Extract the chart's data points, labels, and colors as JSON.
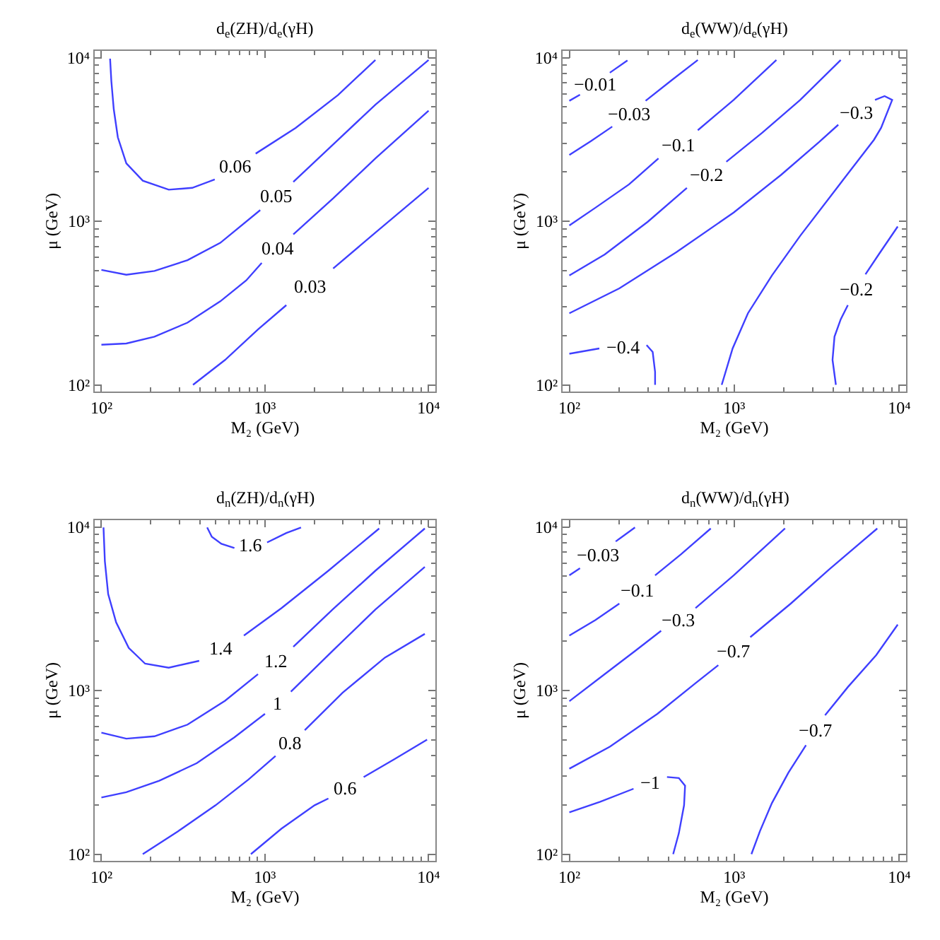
{
  "chart_data": [
    {
      "type": "line",
      "title": "d$_{e}$(ZH)/d$_{e}$(γH)",
      "xlabel": "M₂ (GeV)",
      "ylabel": "μ (GeV)",
      "log": "xy",
      "legend": false,
      "xlim": [
        91,
        11000
      ],
      "ylim": [
        91,
        11000
      ],
      "xticks": [
        {
          "value": 100,
          "label": "10²"
        },
        {
          "value": 200,
          "label": null
        },
        {
          "value": 300,
          "label": null
        },
        {
          "value": 400,
          "label": null
        },
        {
          "value": 500,
          "label": null
        },
        {
          "value": 600,
          "label": null
        },
        {
          "value": 700,
          "label": null
        },
        {
          "value": 800,
          "label": null
        },
        {
          "value": 900,
          "label": null
        },
        {
          "value": 1000,
          "label": "10³"
        },
        {
          "value": 2000,
          "label": null
        },
        {
          "value": 3000,
          "label": null
        },
        {
          "value": 4000,
          "label": null
        },
        {
          "value": 5000,
          "label": null
        },
        {
          "value": 6000,
          "label": null
        },
        {
          "value": 7000,
          "label": null
        },
        {
          "value": 8000,
          "label": null
        },
        {
          "value": 9000,
          "label": null
        },
        {
          "value": 10000,
          "label": "10⁴"
        }
      ],
      "yticks": [
        {
          "value": 100,
          "label": "10²"
        },
        {
          "value": 200,
          "label": null
        },
        {
          "value": 300,
          "label": null
        },
        {
          "value": 400,
          "label": null
        },
        {
          "value": 500,
          "label": null
        },
        {
          "value": 600,
          "label": null
        },
        {
          "value": 700,
          "label": null
        },
        {
          "value": 800,
          "label": null
        },
        {
          "value": 900,
          "label": null
        },
        {
          "value": 1000,
          "label": "10³"
        },
        {
          "value": 2000,
          "label": null
        },
        {
          "value": 3000,
          "label": null
        },
        {
          "value": 4000,
          "label": null
        },
        {
          "value": 5000,
          "label": null
        },
        {
          "value": 6000,
          "label": null
        },
        {
          "value": 7000,
          "label": null
        },
        {
          "value": 8000,
          "label": null
        },
        {
          "value": 9000,
          "label": null
        },
        {
          "value": 10000,
          "label": "10⁴"
        }
      ],
      "series": [
        {
          "name": "0.06",
          "color": "#3f3fff",
          "x": [
            113,
            115,
            119,
            126,
            142,
            179,
            258,
            359,
            493,
            null,
            877,
            1540,
            2790,
            4730
          ],
          "values": [
            9860,
            7190,
            4840,
            3260,
            2260,
            1770,
            1560,
            1600,
            1800,
            null,
            2590,
            3720,
            5900,
            9680
          ]
        },
        {
          "name": "0.05",
          "color": "#3f3fff",
          "x": [
            100,
            142,
            211,
            336,
            533,
            935,
            null,
            1490,
            2610,
            4730,
            10000
          ],
          "values": [
            504,
            471,
            497,
            578,
            738,
            1170,
            null,
            1740,
            2950,
            5160,
            9680
          ]
        },
        {
          "name": "0.04",
          "color": "#3f3fff",
          "x": [
            100,
            142,
            211,
            336,
            533,
            768,
            955,
            null,
            1490,
            2610,
            4730,
            10000
          ],
          "values": [
            176,
            179,
            197,
            240,
            324,
            435,
            556,
            null,
            832,
            1380,
            2420,
            4740
          ]
        },
        {
          "name": "0.03",
          "color": "#3f3fff",
          "x": [
            363,
            570,
            906,
            1350,
            null,
            2610,
            4730,
            10000
          ],
          "values": [
            100,
            142,
            218,
            307,
            null,
            514,
            853,
            1600
          ]
        }
      ]
    },
    {
      "type": "line",
      "title": "d$_{e}$(WW)/d$_{e}$(γH)",
      "xlabel": "M₂ (GeV)",
      "ylabel": "μ (GeV)",
      "log": "xy",
      "legend": false,
      "xlim": [
        91,
        11000
      ],
      "ylim": [
        91,
        11000
      ],
      "xticks": [
        {
          "value": 100,
          "label": "10²"
        },
        {
          "value": 200,
          "label": null
        },
        {
          "value": 300,
          "label": null
        },
        {
          "value": 400,
          "label": null
        },
        {
          "value": 500,
          "label": null
        },
        {
          "value": 600,
          "label": null
        },
        {
          "value": 700,
          "label": null
        },
        {
          "value": 800,
          "label": null
        },
        {
          "value": 900,
          "label": null
        },
        {
          "value": 1000,
          "label": "10³"
        },
        {
          "value": 2000,
          "label": null
        },
        {
          "value": 3000,
          "label": null
        },
        {
          "value": 4000,
          "label": null
        },
        {
          "value": 5000,
          "label": null
        },
        {
          "value": 6000,
          "label": null
        },
        {
          "value": 7000,
          "label": null
        },
        {
          "value": 8000,
          "label": null
        },
        {
          "value": 9000,
          "label": null
        },
        {
          "value": 10000,
          "label": "10⁴"
        }
      ],
      "yticks": [
        {
          "value": 100,
          "label": "10²"
        },
        {
          "value": 200,
          "label": null
        },
        {
          "value": 300,
          "label": null
        },
        {
          "value": 400,
          "label": null
        },
        {
          "value": 500,
          "label": null
        },
        {
          "value": 600,
          "label": null
        },
        {
          "value": 700,
          "label": null
        },
        {
          "value": 800,
          "label": null
        },
        {
          "value": 900,
          "label": null
        },
        {
          "value": 1000,
          "label": "10³"
        },
        {
          "value": 2000,
          "label": null
        },
        {
          "value": 3000,
          "label": null
        },
        {
          "value": 4000,
          "label": null
        },
        {
          "value": 5000,
          "label": null
        },
        {
          "value": 6000,
          "label": null
        },
        {
          "value": 7000,
          "label": null
        },
        {
          "value": 8000,
          "label": null
        },
        {
          "value": 9000,
          "label": null
        },
        {
          "value": 10000,
          "label": "10⁴"
        }
      ],
      "series": [
        {
          "name": "−0.01",
          "color": "#3f3fff",
          "x": [
            100,
            116,
            null,
            176,
            225
          ],
          "values": [
            5450,
            5940,
            null,
            8090,
            9610
          ]
        },
        {
          "name": "−0.03",
          "color": "#3f3fff",
          "x": [
            100,
            135,
            182,
            null,
            290,
            417,
            601
          ],
          "values": [
            2540,
            3090,
            3790,
            null,
            5450,
            7280,
            9680
          ]
        },
        {
          "name": "−0.1",
          "color": "#3f3fff",
          "x": [
            100,
            144,
            230,
            347,
            null,
            601,
            991,
            1800
          ],
          "values": [
            942,
            1210,
            1680,
            2420,
            null,
            3600,
            5520,
            9680
          ]
        },
        {
          "name": "−0.2",
          "color": "#3f3fff",
          "x": [
            100,
            164,
            299,
            516,
            null,
            895,
            1480,
            2510,
            4420
          ],
          "values": [
            466,
            627,
            993,
            1600,
            null,
            2310,
            3480,
            5520,
            9680
          ]
        },
        {
          "name": "−0.3",
          "color": "#3f3fff",
          "x": [
            100,
            201,
            446,
            991,
            1920,
            3270,
            4270,
            null,
            7130,
            8150,
            9060,
            7760,
            7030,
            4350,
            2510,
            1690,
            1210,
            977,
            839
          ],
          "values": [
            274,
            389,
            647,
            1130,
            1920,
            3050,
            3890,
            null,
            5520,
            5820,
            5520,
            3720,
            3150,
            1680,
            815,
            466,
            274,
            167,
            100
          ]
        },
        {
          "name": "−0.4",
          "color": "#3f3fff",
          "x": [
            100,
            152,
            null,
            294,
            320,
            331,
            331
          ],
          "values": [
            155,
            167,
            null,
            175,
            159,
            120,
            100
          ]
        },
        {
          "name": "−0.2",
          "color": "#3f3fff",
          "x": [
            4130,
            3940,
            4050,
            4420,
            4880,
            null,
            6240,
            7510,
            9790
          ],
          "values": [
            100,
            142,
            197,
            252,
            307,
            null,
            474,
            627,
            929
          ]
        }
      ]
    },
    {
      "type": "line",
      "title": "d$_{n}$(ZH)/d$_{n}$(γH)",
      "xlabel": "M₂ (GeV)",
      "ylabel": "μ (GeV)",
      "log": "xy",
      "legend": false,
      "xlim": [
        91,
        11000
      ],
      "ylim": [
        91,
        11000
      ],
      "xticks": [
        {
          "value": 100,
          "label": "10²"
        },
        {
          "value": 200,
          "label": null
        },
        {
          "value": 300,
          "label": null
        },
        {
          "value": 400,
          "label": null
        },
        {
          "value": 500,
          "label": null
        },
        {
          "value": 600,
          "label": null
        },
        {
          "value": 700,
          "label": null
        },
        {
          "value": 800,
          "label": null
        },
        {
          "value": 900,
          "label": null
        },
        {
          "value": 1000,
          "label": "10³"
        },
        {
          "value": 2000,
          "label": null
        },
        {
          "value": 3000,
          "label": null
        },
        {
          "value": 4000,
          "label": null
        },
        {
          "value": 5000,
          "label": null
        },
        {
          "value": 6000,
          "label": null
        },
        {
          "value": 7000,
          "label": null
        },
        {
          "value": 8000,
          "label": null
        },
        {
          "value": 9000,
          "label": null
        },
        {
          "value": 10000,
          "label": "10⁴"
        }
      ],
      "yticks": [
        {
          "value": 100,
          "label": "10²"
        },
        {
          "value": 200,
          "label": null
        },
        {
          "value": 300,
          "label": null
        },
        {
          "value": 400,
          "label": null
        },
        {
          "value": 500,
          "label": null
        },
        {
          "value": 600,
          "label": null
        },
        {
          "value": 700,
          "label": null
        },
        {
          "value": 800,
          "label": null
        },
        {
          "value": 900,
          "label": null
        },
        {
          "value": 1000,
          "label": "10³"
        },
        {
          "value": 2000,
          "label": null
        },
        {
          "value": 3000,
          "label": null
        },
        {
          "value": 4000,
          "label": null
        },
        {
          "value": 5000,
          "label": null
        },
        {
          "value": 6000,
          "label": null
        },
        {
          "value": 7000,
          "label": null
        },
        {
          "value": 8000,
          "label": null
        },
        {
          "value": 9000,
          "label": null
        },
        {
          "value": 10000,
          "label": "10⁴"
        }
      ],
      "series": [
        {
          "name": "1.6",
          "color": "#3f3fff",
          "x": [
            443,
            473,
            541,
            650,
            null,
            1030,
            1350,
            1660
          ],
          "values": [
            9930,
            8710,
            7890,
            7430,
            null,
            8040,
            9180,
            9930
          ]
        },
        {
          "name": "1.4",
          "color": "#3f3fff",
          "x": [
            103,
            105,
            110,
            123,
            147,
            185,
            258,
            396,
            null,
            743,
            1260,
            2440,
            4990
          ],
          "values": [
            9930,
            6170,
            3890,
            2610,
            1820,
            1460,
            1380,
            1520,
            null,
            2170,
            3190,
            5400,
            9790
          ]
        },
        {
          "name": "1.2",
          "color": "#3f3fff",
          "x": [
            100,
            142,
            211,
            336,
            570,
            906,
            null,
            1490,
            2610,
            4730,
            9480
          ],
          "values": [
            553,
            508,
            525,
            619,
            867,
            1260,
            null,
            1850,
            3150,
            5400,
            9790
          ]
        },
        {
          "name": "1",
          "color": "#3f3fff",
          "x": [
            100,
            142,
            226,
            383,
            650,
            1000,
            null,
            1440,
            2610,
            4730,
            9480
          ],
          "values": [
            222,
            239,
            281,
            360,
            518,
            721,
            null,
            984,
            1760,
            3130,
            5700
          ]
        },
        {
          "name": "0.8",
          "color": "#3f3fff",
          "x": [
            179,
            294,
            499,
            793,
            1160,
            null,
            1750,
            2980,
            5410,
            9480
          ],
          "values": [
            100,
            138,
            199,
            286,
            398,
            null,
            572,
            970,
            1590,
            2220
          ]
        },
        {
          "name": "0.6",
          "color": "#3f3fff",
          "x": [
            820,
            1260,
            2010,
            2440,
            null,
            4010,
            6170,
            9790
          ],
          "values": [
            100,
            143,
            199,
            219,
            null,
            296,
            380,
            501
          ]
        }
      ]
    },
    {
      "type": "line",
      "title": "d$_{n}$(WW)/d$_{n}$(γH)",
      "xlabel": "M₂ (GeV)",
      "ylabel": "μ (GeV)",
      "log": "xy",
      "legend": false,
      "xlim": [
        91,
        11000
      ],
      "ylim": [
        91,
        11000
      ],
      "xticks": [
        {
          "value": 100,
          "label": "10²"
        },
        {
          "value": 200,
          "label": null
        },
        {
          "value": 300,
          "label": null
        },
        {
          "value": 400,
          "label": null
        },
        {
          "value": 500,
          "label": null
        },
        {
          "value": 600,
          "label": null
        },
        {
          "value": 700,
          "label": null
        },
        {
          "value": 800,
          "label": null
        },
        {
          "value": 900,
          "label": null
        },
        {
          "value": 1000,
          "label": "10³"
        },
        {
          "value": 2000,
          "label": null
        },
        {
          "value": 3000,
          "label": null
        },
        {
          "value": 4000,
          "label": null
        },
        {
          "value": 5000,
          "label": null
        },
        {
          "value": 6000,
          "label": null
        },
        {
          "value": 7000,
          "label": null
        },
        {
          "value": 8000,
          "label": null
        },
        {
          "value": 9000,
          "label": null
        },
        {
          "value": 10000,
          "label": "10⁴"
        }
      ],
      "yticks": [
        {
          "value": 100,
          "label": "10²"
        },
        {
          "value": 200,
          "label": null
        },
        {
          "value": 300,
          "label": null
        },
        {
          "value": 400,
          "label": null
        },
        {
          "value": 500,
          "label": null
        },
        {
          "value": 600,
          "label": null
        },
        {
          "value": 700,
          "label": null
        },
        {
          "value": 800,
          "label": null
        },
        {
          "value": 900,
          "label": null
        },
        {
          "value": 1000,
          "label": "10³"
        },
        {
          "value": 2000,
          "label": null
        },
        {
          "value": 3000,
          "label": null
        },
        {
          "value": 4000,
          "label": null
        },
        {
          "value": 5000,
          "label": null
        },
        {
          "value": 6000,
          "label": null
        },
        {
          "value": 7000,
          "label": null
        },
        {
          "value": 8000,
          "label": null
        },
        {
          "value": 9000,
          "label": null
        },
        {
          "value": 10000,
          "label": "10⁴"
        }
      ],
      "series": [
        {
          "name": "−0.03",
          "color": "#3f3fff",
          "x": [
            100,
            116,
            null,
            191,
            250
          ],
          "values": [
            5060,
            5590,
            null,
            8150,
            9930
          ]
        },
        {
          "name": "−0.1",
          "color": "#3f3fff",
          "x": [
            100,
            144,
            201,
            null,
            331,
            476,
            720
          ],
          "values": [
            2170,
            2700,
            3400,
            null,
            5060,
            6820,
            9790
          ]
        },
        {
          "name": "−0.3",
          "color": "#3f3fff",
          "x": [
            100,
            164,
            253,
            360,
            null,
            582,
            991,
            2030
          ],
          "values": [
            861,
            1260,
            1760,
            2320,
            null,
            3190,
            5060,
            9790
          ]
        },
        {
          "name": "−0.7",
          "color": "#3f3fff",
          "x": [
            100,
            176,
            342,
            582,
            800,
            null,
            1250,
            2200,
            3740,
            7360
          ],
          "values": [
            333,
            454,
            721,
            1110,
            1430,
            null,
            2120,
            3400,
            5480,
            9790
          ]
        },
        {
          "name": "−0.7",
          "color": "#3f3fff",
          "x": [
            1270,
            1430,
            1690,
            2130,
            2720,
            null,
            3550,
            4880,
            7260,
            9790
          ],
          "values": [
            100,
            138,
            205,
            315,
            463,
            null,
            706,
            1050,
            1650,
            2530
          ]
        },
        {
          "name": "−1",
          "color": "#3f3fff",
          "x": [
            100,
            154,
            245,
            null,
            391,
            461,
            503,
            496,
            461,
            426
          ],
          "values": [
            180,
            209,
            251,
            null,
            296,
            292,
            262,
            199,
            134,
            100
          ]
        }
      ]
    }
  ]
}
